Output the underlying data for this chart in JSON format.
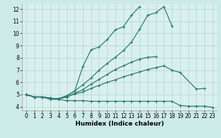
{
  "xlabel": "Humidex (Indice chaleur)",
  "x": [
    0,
    1,
    2,
    3,
    4,
    5,
    6,
    7,
    8,
    9,
    10,
    11,
    12,
    13,
    14,
    15,
    16,
    17,
    18,
    19,
    20,
    21,
    22,
    23
  ],
  "series": [
    [
      5.0,
      4.8,
      4.8,
      4.6,
      4.6,
      4.5,
      4.5,
      4.5,
      4.45,
      4.45,
      4.45,
      4.45,
      4.45,
      4.45,
      4.45,
      4.45,
      4.45,
      4.45,
      4.45,
      4.1,
      4.05,
      4.05,
      4.05,
      3.95
    ],
    [
      5.0,
      4.8,
      4.8,
      4.7,
      4.65,
      4.8,
      5.05,
      5.2,
      5.5,
      5.75,
      6.0,
      6.2,
      6.45,
      6.65,
      6.85,
      7.05,
      7.2,
      7.35,
      7.0,
      6.8,
      null,
      5.45,
      5.5,
      null
    ],
    [
      5.0,
      4.8,
      4.8,
      4.7,
      4.65,
      4.8,
      5.1,
      5.4,
      5.85,
      6.25,
      6.65,
      7.05,
      7.35,
      7.65,
      7.9,
      8.05,
      8.1,
      null,
      null,
      null,
      null,
      null,
      null,
      null
    ],
    [
      5.0,
      4.8,
      4.8,
      4.7,
      4.65,
      4.9,
      5.3,
      5.8,
      6.35,
      7.0,
      7.55,
      8.05,
      8.6,
      9.3,
      10.35,
      11.5,
      11.7,
      12.2,
      10.6,
      null,
      null,
      null,
      null,
      null
    ],
    [
      5.0,
      4.8,
      4.8,
      4.7,
      4.65,
      4.9,
      5.3,
      7.3,
      8.65,
      8.9,
      9.5,
      10.3,
      10.55,
      11.5,
      12.2,
      null,
      null,
      null,
      null,
      null,
      null,
      null,
      null,
      null
    ]
  ],
  "line_color": "#2a7b6f",
  "marker": "+",
  "marker_size": 3,
  "marker_lw": 0.8,
  "line_width": 0.9,
  "ylim": [
    3.7,
    12.4
  ],
  "xlim": [
    -0.5,
    23.5
  ],
  "yticks": [
    4,
    5,
    6,
    7,
    8,
    9,
    10,
    11,
    12
  ],
  "xticks": [
    0,
    1,
    2,
    3,
    4,
    5,
    6,
    7,
    8,
    9,
    10,
    11,
    12,
    13,
    14,
    15,
    16,
    17,
    18,
    19,
    20,
    21,
    22,
    23
  ],
  "bg_color": "#cceae8",
  "grid_color": "#aad4d0",
  "axes_bg": "#daf0ee",
  "tick_fontsize": 5.5,
  "xlabel_fontsize": 6.5
}
